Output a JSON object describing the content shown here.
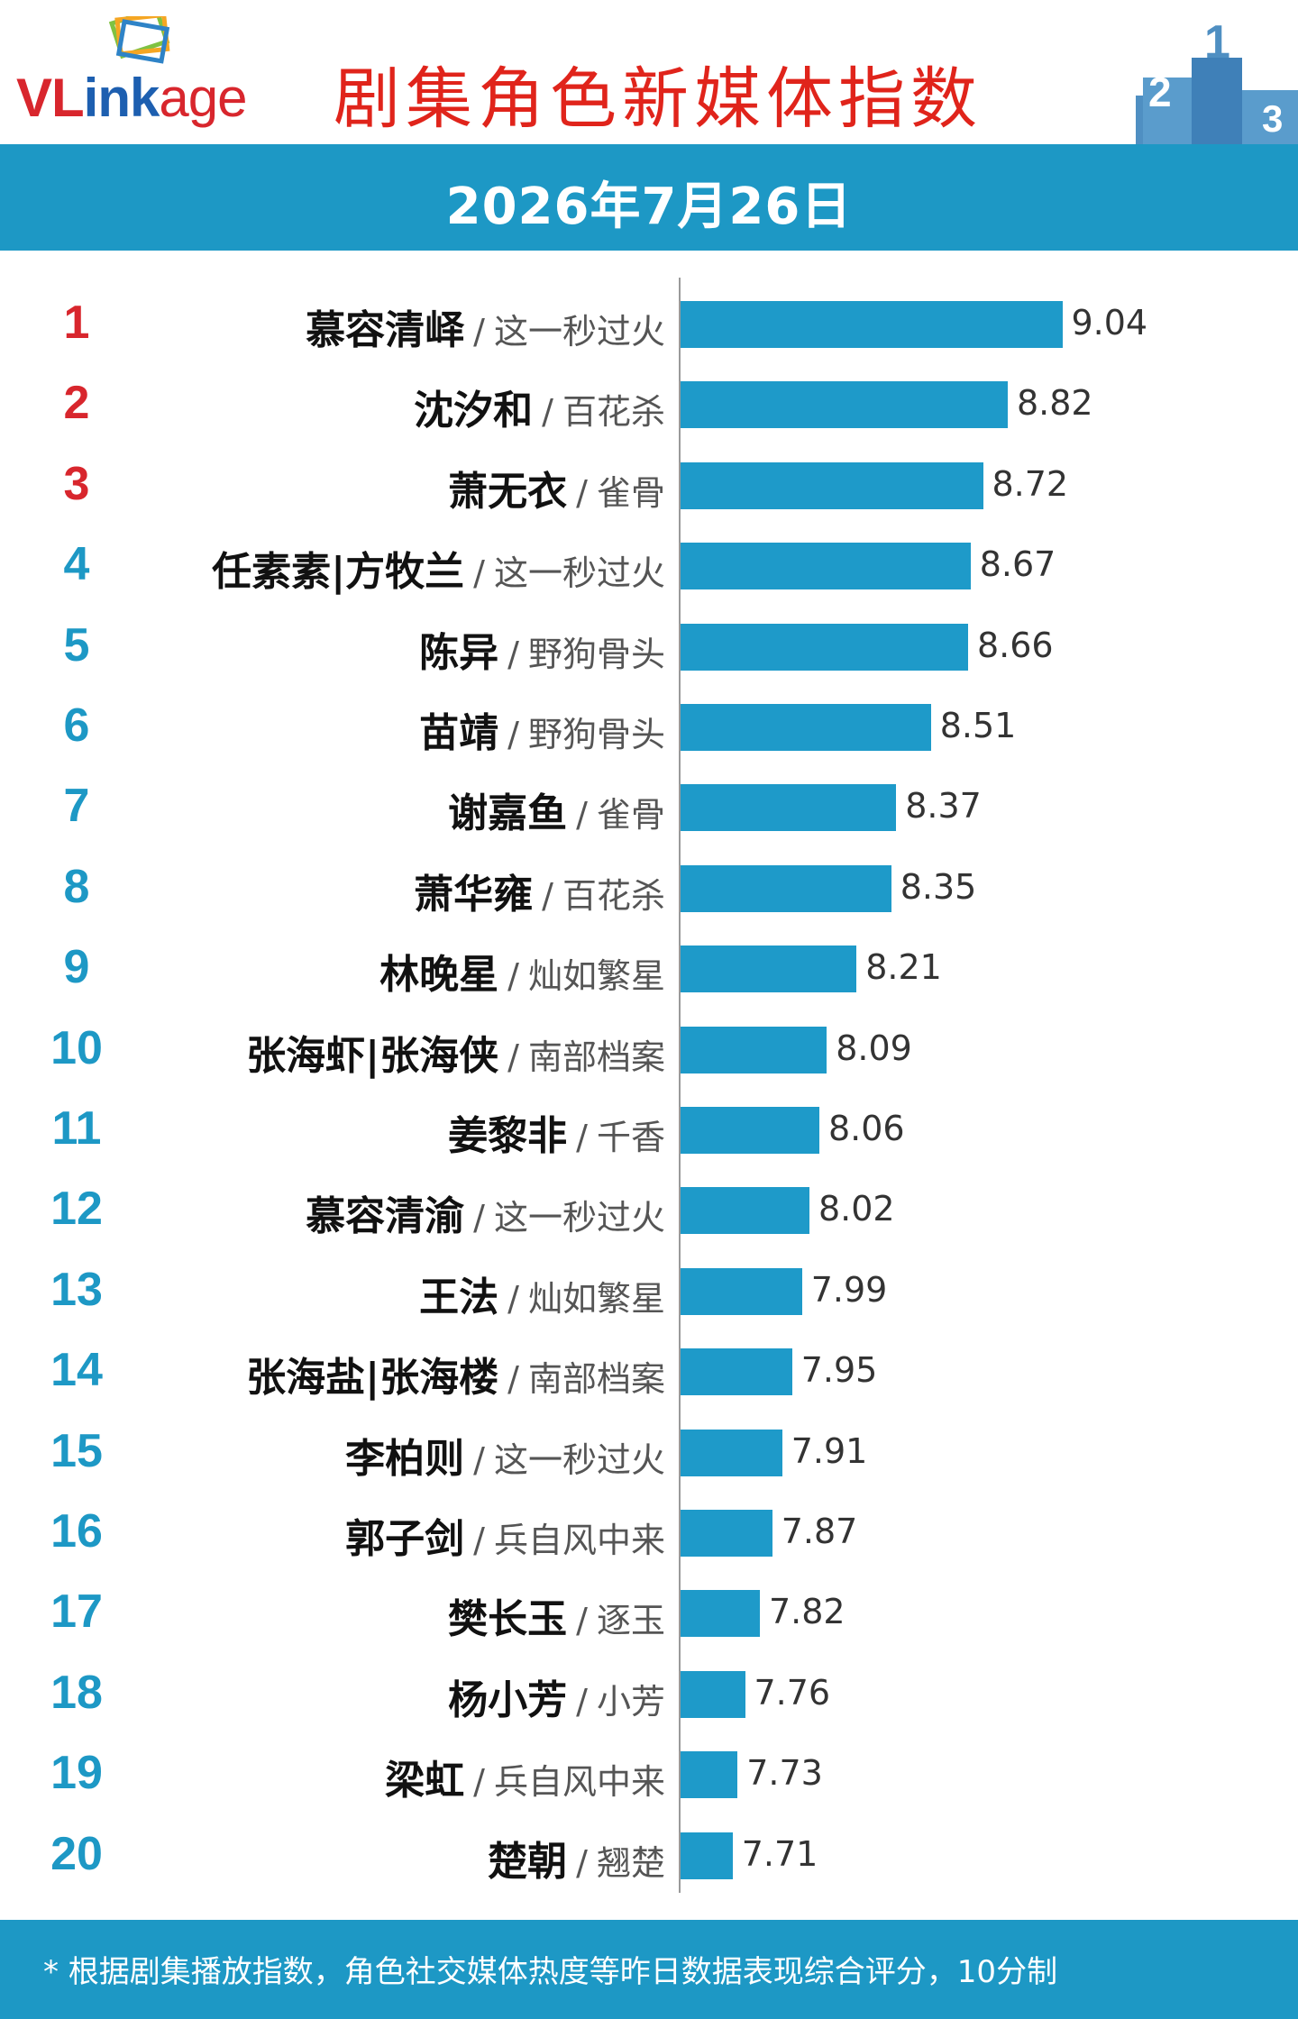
{
  "header": {
    "logo_text": "VLinkage",
    "title": "剧集角色新媒体指数",
    "date": "2026年7月26日"
  },
  "colors": {
    "band": "#1d98c5",
    "bar": "#1e9ac9",
    "title": "#e0241b",
    "top_rank": "#d8262d"
  },
  "chart_data": {
    "type": "bar",
    "orientation": "horizontal",
    "title": "剧集角色新媒体指数",
    "categories": [
      "慕容清峄 / 这一秒过火",
      "沈汐和 / 百花杀",
      "萧无衣 / 雀骨",
      "任素素|方牧兰 / 这一秒过火",
      "陈异 / 野狗骨头",
      "苗靖 / 野狗骨头",
      "谢嘉鱼 / 雀骨",
      "萧华雍 / 百花杀",
      "林晚星 / 灿如繁星",
      "张海虾|张海侠 / 南部档案",
      "姜黎非 / 千香",
      "慕容清渝 / 这一秒过火",
      "王法 / 灿如繁星",
      "张海盐|张海楼 / 南部档案",
      "李柏则 / 这一秒过火",
      "郭子剑 / 兵自风中来",
      "樊长玉 / 逐玉",
      "杨小芳 / 小芳",
      "梁虹 / 兵自风中来",
      "楚朝 / 翘楚"
    ],
    "values": [
      9.04,
      8.82,
      8.72,
      8.67,
      8.66,
      8.51,
      8.37,
      8.35,
      8.21,
      8.09,
      8.06,
      8.02,
      7.99,
      7.95,
      7.91,
      7.87,
      7.82,
      7.76,
      7.73,
      7.71
    ],
    "xlim": [
      7.5,
      9.15
    ],
    "rows": [
      {
        "rank": "1",
        "role": "慕容清峄",
        "drama": "这一秒过火",
        "value": "9.04"
      },
      {
        "rank": "2",
        "role": "沈汐和",
        "drama": "百花杀",
        "value": "8.82"
      },
      {
        "rank": "3",
        "role": "萧无衣",
        "drama": "雀骨",
        "value": "8.72"
      },
      {
        "rank": "4",
        "role": "任素素|方牧兰",
        "drama": "这一秒过火",
        "value": "8.67"
      },
      {
        "rank": "5",
        "role": "陈异",
        "drama": "野狗骨头",
        "value": "8.66"
      },
      {
        "rank": "6",
        "role": "苗靖",
        "drama": "野狗骨头",
        "value": "8.51"
      },
      {
        "rank": "7",
        "role": "谢嘉鱼",
        "drama": "雀骨",
        "value": "8.37"
      },
      {
        "rank": "8",
        "role": "萧华雍",
        "drama": "百花杀",
        "value": "8.35"
      },
      {
        "rank": "9",
        "role": "林晚星",
        "drama": "灿如繁星",
        "value": "8.21"
      },
      {
        "rank": "10",
        "role": "张海虾|张海侠",
        "drama": "南部档案",
        "value": "8.09"
      },
      {
        "rank": "11",
        "role": "姜黎非",
        "drama": "千香",
        "value": "8.06"
      },
      {
        "rank": "12",
        "role": "慕容清渝",
        "drama": "这一秒过火",
        "value": "8.02"
      },
      {
        "rank": "13",
        "role": "王法",
        "drama": "灿如繁星",
        "value": "7.99"
      },
      {
        "rank": "14",
        "role": "张海盐|张海楼",
        "drama": "南部档案",
        "value": "7.95"
      },
      {
        "rank": "15",
        "role": "李柏则",
        "drama": "这一秒过火",
        "value": "7.91"
      },
      {
        "rank": "16",
        "role": "郭子剑",
        "drama": "兵自风中来",
        "value": "7.87"
      },
      {
        "rank": "17",
        "role": "樊长玉",
        "drama": "逐玉",
        "value": "7.82"
      },
      {
        "rank": "18",
        "role": "杨小芳",
        "drama": "小芳",
        "value": "7.76"
      },
      {
        "rank": "19",
        "role": "梁虹",
        "drama": "兵自风中来",
        "value": "7.73"
      },
      {
        "rank": "20",
        "role": "楚朝",
        "drama": "翘楚",
        "value": "7.71"
      }
    ]
  },
  "footer": {
    "note": "* 根据剧集播放指数，角色社交媒体热度等昨日数据表现综合评分，10分制"
  }
}
